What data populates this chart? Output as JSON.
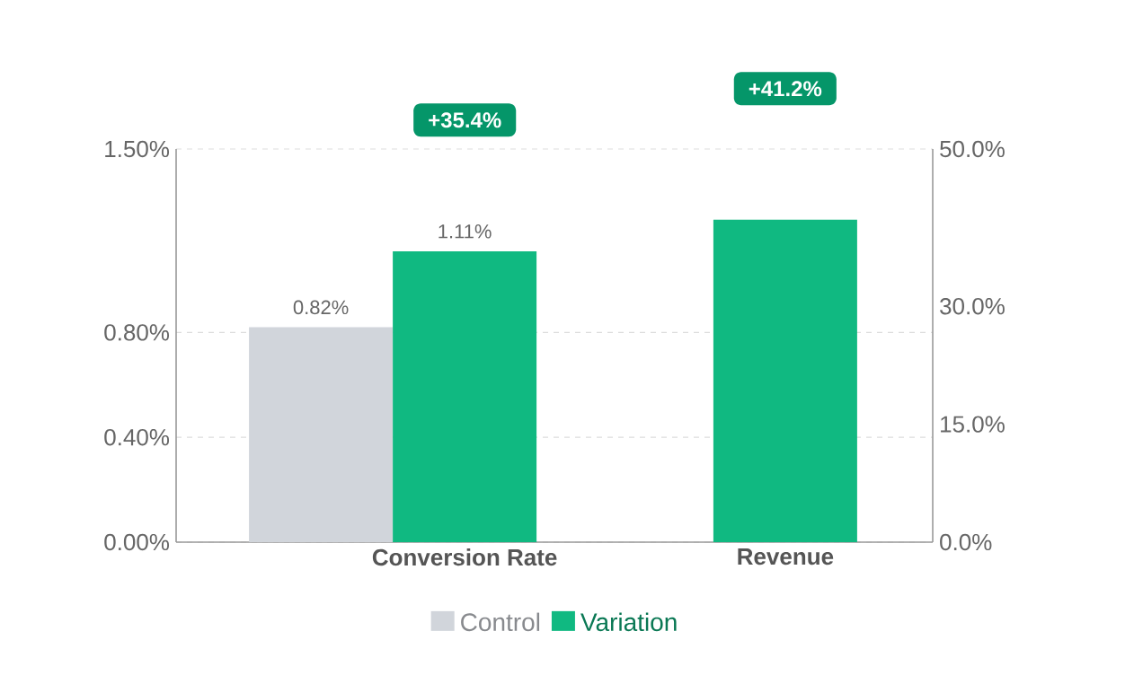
{
  "chart_data": {
    "type": "bar",
    "categories": [
      "Conversion Rate",
      "Revenue"
    ],
    "series": [
      {
        "name": "Control",
        "color": "#d1d5db",
        "values": [
          0.82,
          null
        ],
        "value_labels": [
          "0.82%",
          null
        ]
      },
      {
        "name": "Variation",
        "color": "#10b981",
        "values": [
          1.11,
          null
        ],
        "value_labels": [
          "1.11%",
          null
        ]
      },
      {
        "color": "#10b981",
        "axis": "y2",
        "values": [
          null,
          41
        ]
      }
    ],
    "ylim": [
      0,
      1.5
    ],
    "yticks": [
      {
        "value": 0,
        "label": "0.00%"
      },
      {
        "value": 0.4,
        "label": "0.40%"
      },
      {
        "value": 0.8,
        "label": "0.80%"
      },
      {
        "value": 1.5,
        "label": "1.50%"
      }
    ],
    "y2lim": [
      0,
      50
    ],
    "y2ticks": [
      {
        "value": 0,
        "label": "0.0%"
      },
      {
        "value": 15,
        "label": "15.0%"
      },
      {
        "value": 30,
        "label": "30.0%"
      },
      {
        "value": 50,
        "label": "50.0%"
      }
    ],
    "annotations": [
      "+35.4%",
      "+41.2%"
    ],
    "grid": "y",
    "legend": "bottom"
  }
}
